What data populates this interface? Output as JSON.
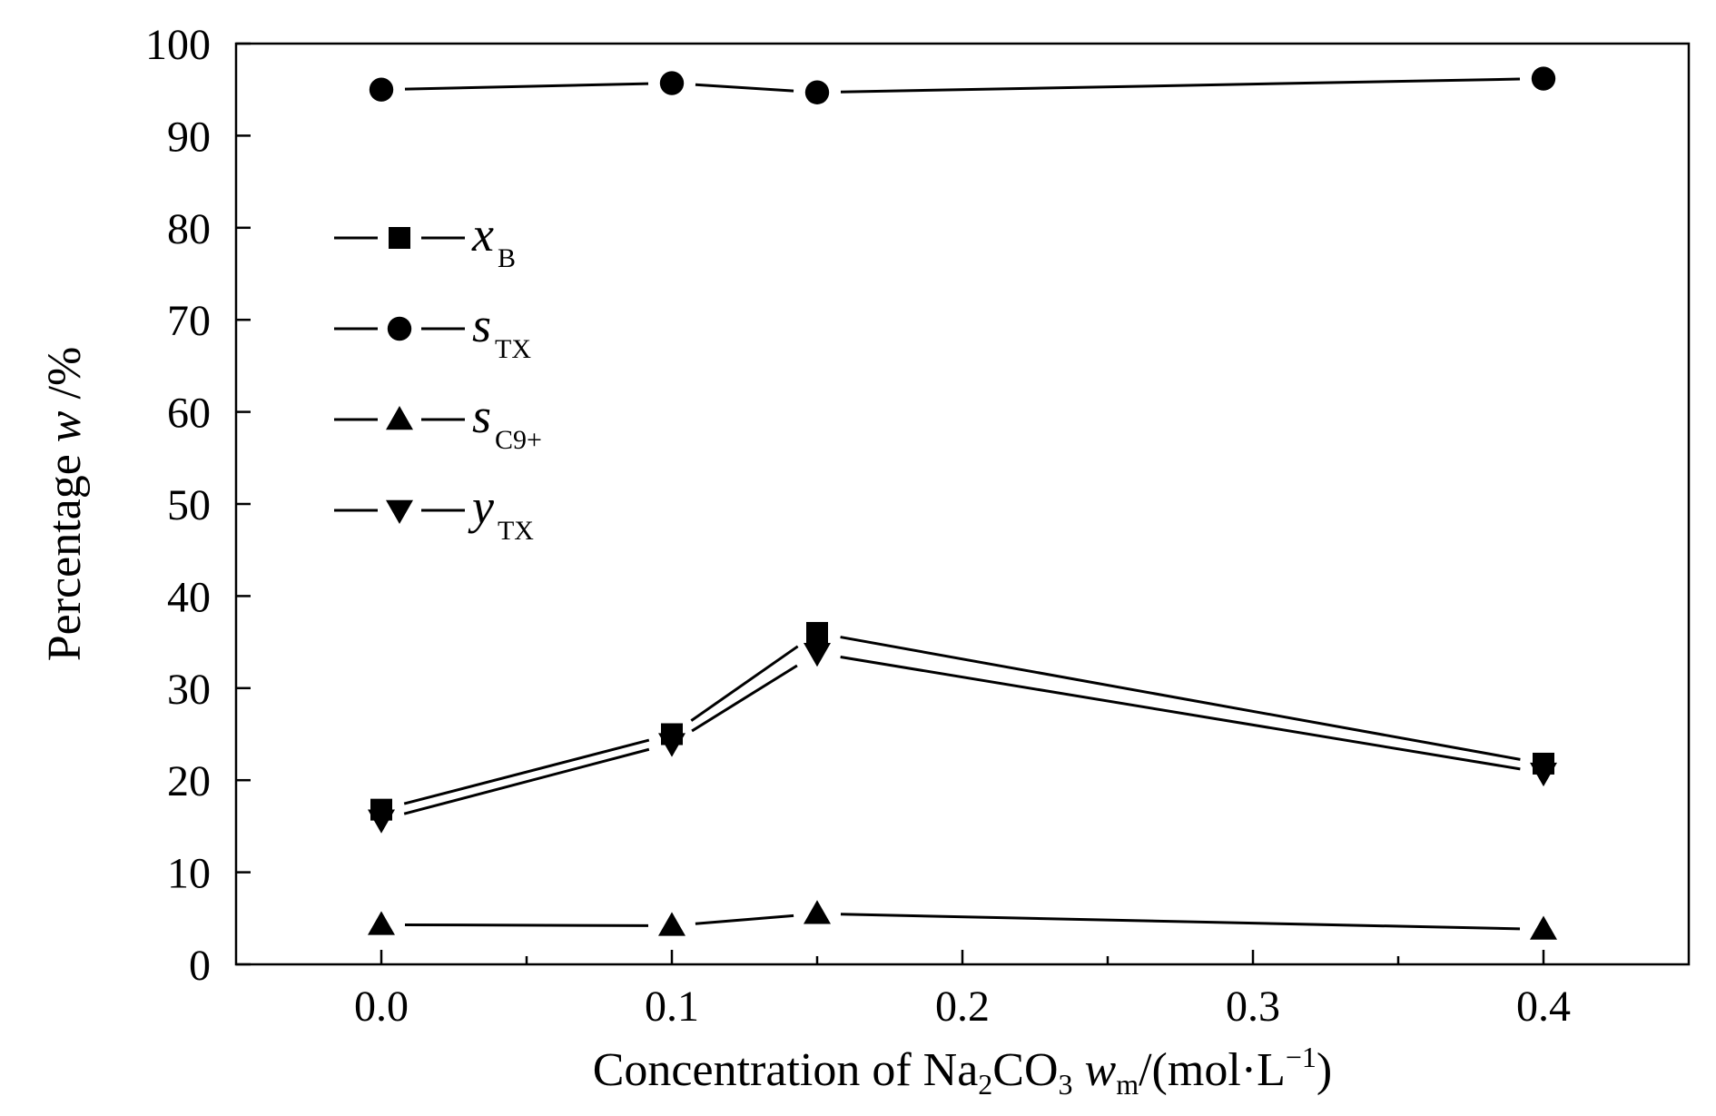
{
  "chart_data": {
    "type": "line",
    "x": [
      0.0,
      0.1,
      0.15,
      0.4
    ],
    "xlim": [
      -0.05,
      0.45
    ],
    "ylim": [
      0,
      100
    ],
    "xticks": [
      "0.0",
      "0.1",
      "0.2",
      "0.3",
      "0.4"
    ],
    "yticks": [
      "0",
      "10",
      "20",
      "30",
      "40",
      "50",
      "60",
      "70",
      "80",
      "90",
      "100"
    ],
    "grid": false,
    "legend_position": "left-middle",
    "xlabel": {
      "prefix": "Concentration of Na",
      "sub1": "2",
      "mid": "CO",
      "sub2": "3",
      "var": "w",
      "var_sub": "m",
      "unit_start": "/(mol·L",
      "unit_sup": "−1",
      "unit_end": ")"
    },
    "ylabel": {
      "text": "Percentage",
      "var": "w",
      "unit": " /%"
    },
    "series": [
      {
        "name": "x",
        "sub": "B",
        "marker": "square",
        "values": [
          16.8,
          25.0,
          36.0,
          21.8
        ]
      },
      {
        "name": "s",
        "sub": "TX",
        "marker": "circle",
        "values": [
          95.0,
          95.7,
          94.7,
          96.2
        ]
      },
      {
        "name": "s",
        "sub": "C9+",
        "marker": "triangle-up",
        "values": [
          4.3,
          4.2,
          5.5,
          3.8
        ]
      },
      {
        "name": "y",
        "sub": "TX",
        "marker": "triangle-down",
        "values": [
          15.7,
          24.0,
          33.8,
          20.8
        ]
      }
    ]
  }
}
